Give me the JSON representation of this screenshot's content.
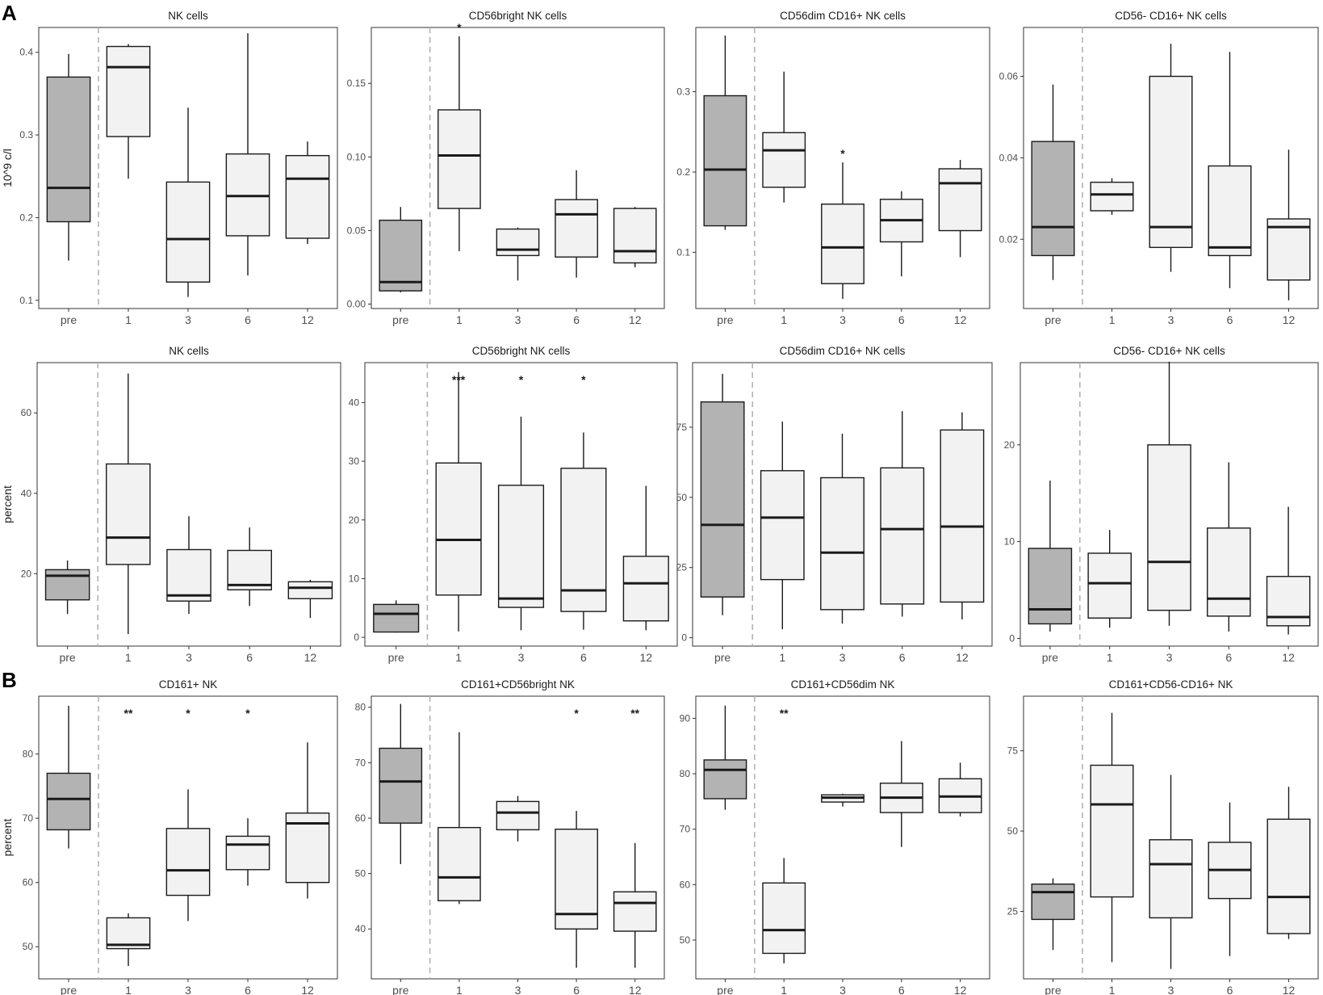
{
  "panel_labels": {
    "A": "A",
    "B": "B"
  },
  "chart_data": [
    {
      "type": "boxplot",
      "section": "A",
      "row": 0,
      "col": 0,
      "title": "NK cells",
      "ylabel": "10^9 c/l",
      "categories": [
        "pre",
        "1",
        "3",
        "6",
        "12"
      ],
      "ylim": [
        0.09,
        0.43
      ],
      "yticks": [
        0.1,
        0.2,
        0.3,
        0.4
      ],
      "ytick_labels": [
        "0.1",
        "0.2",
        "0.3",
        "0.4"
      ],
      "boxes": [
        {
          "min": 0.148,
          "q1": 0.195,
          "median": 0.236,
          "q3": 0.37,
          "max": 0.398
        },
        {
          "min": 0.247,
          "q1": 0.298,
          "median": 0.382,
          "q3": 0.407,
          "max": 0.41
        },
        {
          "min": 0.104,
          "q1": 0.122,
          "median": 0.174,
          "q3": 0.243,
          "max": 0.333
        },
        {
          "min": 0.13,
          "q1": 0.178,
          "median": 0.226,
          "q3": 0.277,
          "max": 0.423
        },
        {
          "min": 0.168,
          "q1": 0.175,
          "median": 0.247,
          "q3": 0.275,
          "max": 0.292
        }
      ],
      "significance": [
        "",
        "",
        "",
        "",
        ""
      ]
    },
    {
      "type": "boxplot",
      "section": "A",
      "row": 0,
      "col": 1,
      "title": "CD56bright NK cells",
      "ylabel": "",
      "categories": [
        "pre",
        "1",
        "3",
        "6",
        "12"
      ],
      "ylim": [
        -0.003,
        0.188
      ],
      "yticks": [
        0,
        0.05,
        0.1,
        0.15
      ],
      "ytick_labels": [
        "0.00",
        "0.05",
        "0.10",
        "0.15"
      ],
      "boxes": [
        {
          "min": 0.008,
          "q1": 0.009,
          "median": 0.015,
          "q3": 0.057,
          "max": 0.066
        },
        {
          "min": 0.036,
          "q1": 0.065,
          "median": 0.101,
          "q3": 0.132,
          "max": 0.182
        },
        {
          "min": 0.016,
          "q1": 0.033,
          "median": 0.037,
          "q3": 0.051,
          "max": 0.052
        },
        {
          "min": 0.018,
          "q1": 0.032,
          "median": 0.061,
          "q3": 0.071,
          "max": 0.091
        },
        {
          "min": 0.025,
          "q1": 0.028,
          "median": 0.036,
          "q3": 0.065,
          "max": 0.066
        }
      ],
      "significance": [
        "",
        "*",
        "",
        "",
        ""
      ]
    },
    {
      "type": "boxplot",
      "section": "A",
      "row": 0,
      "col": 2,
      "title": "CD56dim CD16+ NK cells",
      "ylabel": "",
      "categories": [
        "pre",
        "1",
        "3",
        "6",
        "12"
      ],
      "ylim": [
        0.03,
        0.38
      ],
      "yticks": [
        0.1,
        0.2,
        0.3
      ],
      "ytick_labels": [
        "0.1",
        "0.2",
        "0.3"
      ],
      "boxes": [
        {
          "min": 0.128,
          "q1": 0.133,
          "median": 0.203,
          "q3": 0.295,
          "max": 0.37
        },
        {
          "min": 0.162,
          "q1": 0.181,
          "median": 0.227,
          "q3": 0.249,
          "max": 0.325
        },
        {
          "min": 0.042,
          "q1": 0.061,
          "median": 0.106,
          "q3": 0.16,
          "max": 0.212
        },
        {
          "min": 0.07,
          "q1": 0.113,
          "median": 0.14,
          "q3": 0.166,
          "max": 0.176
        },
        {
          "min": 0.094,
          "q1": 0.127,
          "median": 0.186,
          "q3": 0.204,
          "max": 0.215
        }
      ],
      "significance": [
        "",
        "",
        "*",
        "",
        ""
      ]
    },
    {
      "type": "boxplot",
      "section": "A",
      "row": 0,
      "col": 3,
      "title": "CD56- CD16+ NK cells",
      "ylabel": "",
      "categories": [
        "pre",
        "1",
        "3",
        "6",
        "12"
      ],
      "ylim": [
        0.003,
        0.072
      ],
      "yticks": [
        0.02,
        0.04,
        0.06
      ],
      "ytick_labels": [
        "0.02",
        "0.04",
        "0.06"
      ],
      "boxes": [
        {
          "min": 0.01,
          "q1": 0.016,
          "median": 0.023,
          "q3": 0.044,
          "max": 0.058
        },
        {
          "min": 0.026,
          "q1": 0.027,
          "median": 0.031,
          "q3": 0.034,
          "max": 0.035
        },
        {
          "min": 0.012,
          "q1": 0.018,
          "median": 0.023,
          "q3": 0.06,
          "max": 0.068
        },
        {
          "min": 0.008,
          "q1": 0.016,
          "median": 0.018,
          "q3": 0.038,
          "max": 0.066
        },
        {
          "min": 0.005,
          "q1": 0.01,
          "median": 0.023,
          "q3": 0.025,
          "max": 0.042
        }
      ],
      "significance": [
        "",
        "",
        "",
        "",
        ""
      ]
    },
    {
      "type": "boxplot",
      "section": "A",
      "row": 1,
      "col": 0,
      "title": "NK cells",
      "ylabel": "percent",
      "categories": [
        "pre",
        "1",
        "3",
        "6",
        "12"
      ],
      "ylim": [
        2,
        72.5
      ],
      "yticks": [
        20,
        40,
        60
      ],
      "ytick_labels": [
        "20",
        "40",
        "60"
      ],
      "boxes": [
        {
          "min": 10,
          "q1": 13.5,
          "median": 19.5,
          "q3": 21,
          "max": 23.3
        },
        {
          "min": 5,
          "q1": 22.3,
          "median": 29,
          "q3": 47.3,
          "max": 69.8
        },
        {
          "min": 10,
          "q1": 13.2,
          "median": 14.6,
          "q3": 26,
          "max": 34.3
        },
        {
          "min": 12,
          "q1": 16,
          "median": 17.2,
          "q3": 25.8,
          "max": 31.5
        },
        {
          "min": 9,
          "q1": 13.8,
          "median": 16.5,
          "q3": 18,
          "max": 18.5
        }
      ],
      "significance": [
        "",
        "",
        "",
        "",
        ""
      ]
    },
    {
      "type": "boxplot",
      "section": "A",
      "row": 1,
      "col": 1,
      "title": "CD56bright NK cells",
      "ylabel": "",
      "categories": [
        "pre",
        "1",
        "3",
        "6",
        "12"
      ],
      "ylim": [
        -1.5,
        46.8
      ],
      "yticks": [
        0,
        10,
        20,
        30,
        40
      ],
      "ytick_labels": [
        "0",
        "10",
        "20",
        "30",
        "40"
      ],
      "boxes": [
        {
          "min": 0.8,
          "q1": 0.9,
          "median": 4,
          "q3": 5.6,
          "max": 6.3
        },
        {
          "min": 1,
          "q1": 7.2,
          "median": 16.6,
          "q3": 29.7,
          "max": 45.2
        },
        {
          "min": 1.2,
          "q1": 5.1,
          "median": 6.6,
          "q3": 25.9,
          "max": 37.6
        },
        {
          "min": 1.3,
          "q1": 4.4,
          "median": 8,
          "q3": 28.8,
          "max": 34.9
        },
        {
          "min": 1.2,
          "q1": 2.8,
          "median": 9.2,
          "q3": 13.8,
          "max": 25.8
        }
      ],
      "significance": [
        "",
        "***",
        "*",
        "*",
        ""
      ]
    },
    {
      "type": "boxplot",
      "section": "A",
      "row": 1,
      "col": 2,
      "title": "CD56dim CD16+ NK cells",
      "ylabel": "",
      "categories": [
        "pre",
        "1",
        "3",
        "6",
        "12"
      ],
      "ylim": [
        -3,
        98
      ],
      "yticks": [
        0,
        25,
        50,
        75
      ],
      "ytick_labels": [
        "0",
        "25",
        "50",
        "75"
      ],
      "boxes": [
        {
          "min": 8,
          "q1": 14.5,
          "median": 40.2,
          "q3": 84,
          "max": 94
        },
        {
          "min": 3,
          "q1": 20.7,
          "median": 42.8,
          "q3": 59.5,
          "max": 77
        },
        {
          "min": 5,
          "q1": 10,
          "median": 30.3,
          "q3": 57,
          "max": 72.7
        },
        {
          "min": 7.5,
          "q1": 12,
          "median": 38.7,
          "q3": 60.5,
          "max": 80.7
        },
        {
          "min": 6.5,
          "q1": 12.7,
          "median": 39.6,
          "q3": 74,
          "max": 80.3
        }
      ],
      "significance": [
        "",
        "",
        "",
        "",
        ""
      ]
    },
    {
      "type": "boxplot",
      "section": "A",
      "row": 1,
      "col": 3,
      "title": "CD56- CD16+ NK cells",
      "ylabel": "",
      "categories": [
        "pre",
        "1",
        "3",
        "6",
        "12"
      ],
      "ylim": [
        -0.8,
        28.5
      ],
      "yticks": [
        0,
        10,
        20
      ],
      "ytick_labels": [
        "0",
        "10",
        "20"
      ],
      "boxes": [
        {
          "min": 0.7,
          "q1": 1.5,
          "median": 3,
          "q3": 9.3,
          "max": 16.3
        },
        {
          "min": 1.1,
          "q1": 2.1,
          "median": 5.7,
          "q3": 8.8,
          "max": 11.2
        },
        {
          "min": 1.3,
          "q1": 2.9,
          "median": 7.9,
          "q3": 20,
          "max": 28.6
        },
        {
          "min": 0.7,
          "q1": 2.3,
          "median": 4.1,
          "q3": 11.4,
          "max": 18.2
        },
        {
          "min": 0.4,
          "q1": 1.3,
          "median": 2.2,
          "q3": 6.4,
          "max": 13.6
        }
      ],
      "significance": [
        "",
        "",
        "",
        "",
        ""
      ]
    },
    {
      "type": "boxplot",
      "section": "B",
      "row": 2,
      "col": 0,
      "title": "CD161+ NK",
      "ylabel": "percent",
      "categories": [
        "pre",
        "1",
        "3",
        "6",
        "12"
      ],
      "ylim": [
        45,
        89
      ],
      "yticks": [
        50,
        60,
        70,
        80
      ],
      "ytick_labels": [
        "50",
        "60",
        "70",
        "80"
      ],
      "boxes": [
        {
          "min": 65.3,
          "q1": 68.2,
          "median": 73,
          "q3": 77,
          "max": 87.5
        },
        {
          "min": 47,
          "q1": 49.7,
          "median": 50.3,
          "q3": 54.5,
          "max": 55.2
        },
        {
          "min": 54,
          "q1": 58,
          "median": 61.9,
          "q3": 68.4,
          "max": 74.5
        },
        {
          "min": 59.5,
          "q1": 62,
          "median": 65.9,
          "q3": 67.2,
          "max": 70
        },
        {
          "min": 57.5,
          "q1": 60,
          "median": 69.2,
          "q3": 70.8,
          "max": 81.8
        }
      ],
      "significance": [
        "",
        "**",
        "*",
        "*",
        ""
      ]
    },
    {
      "type": "boxplot",
      "section": "B",
      "row": 2,
      "col": 1,
      "title": "CD161+CD56bright NK",
      "ylabel": "",
      "categories": [
        "pre",
        "1",
        "3",
        "6",
        "12"
      ],
      "ylim": [
        31,
        82
      ],
      "yticks": [
        40,
        50,
        60,
        70,
        80
      ],
      "ytick_labels": [
        "40",
        "50",
        "60",
        "70",
        "80"
      ],
      "boxes": [
        {
          "min": 51.7,
          "q1": 59.1,
          "median": 66.6,
          "q3": 72.6,
          "max": 80.6
        },
        {
          "min": 44.5,
          "q1": 45.1,
          "median": 49.3,
          "q3": 58.3,
          "max": 75.5
        },
        {
          "min": 55.8,
          "q1": 57.9,
          "median": 61,
          "q3": 63,
          "max": 64
        },
        {
          "min": 33,
          "q1": 40,
          "median": 42.7,
          "q3": 58,
          "max": 61.3
        },
        {
          "min": 33,
          "q1": 39.6,
          "median": 44.7,
          "q3": 46.7,
          "max": 55.5
        }
      ],
      "significance": [
        "",
        "",
        "",
        "*",
        "**"
      ]
    },
    {
      "type": "boxplot",
      "section": "B",
      "row": 2,
      "col": 2,
      "title": "CD161+CD56dim NK",
      "ylabel": "",
      "categories": [
        "pre",
        "1",
        "3",
        "6",
        "12"
      ],
      "ylim": [
        43,
        94
      ],
      "yticks": [
        50,
        60,
        70,
        80,
        90
      ],
      "ytick_labels": [
        "50",
        "60",
        "70",
        "80",
        "90"
      ],
      "boxes": [
        {
          "min": 73.5,
          "q1": 75.5,
          "median": 80.7,
          "q3": 82.5,
          "max": 92.3
        },
        {
          "min": 45.8,
          "q1": 47.6,
          "median": 51.8,
          "q3": 60.3,
          "max": 64.8
        },
        {
          "min": 74.1,
          "q1": 74.9,
          "median": 75.7,
          "q3": 76.2,
          "max": 76.4
        },
        {
          "min": 66.8,
          "q1": 73,
          "median": 75.7,
          "q3": 78.3,
          "max": 85.9
        },
        {
          "min": 72.3,
          "q1": 73,
          "median": 75.9,
          "q3": 79.1,
          "max": 82
        }
      ],
      "significance": [
        "",
        "**",
        "",
        "",
        ""
      ]
    },
    {
      "type": "boxplot",
      "section": "B",
      "row": 2,
      "col": 3,
      "title": "CD161+CD56-CD16+ NK",
      "ylabel": "",
      "categories": [
        "pre",
        "1",
        "3",
        "6",
        "12"
      ],
      "ylim": [
        4,
        92
      ],
      "yticks": [
        25,
        50,
        75
      ],
      "ytick_labels": [
        "25",
        "50",
        "75"
      ],
      "boxes": [
        {
          "min": 13,
          "q1": 22.5,
          "median": 31,
          "q3": 33.5,
          "max": 35.3
        },
        {
          "min": 9.2,
          "q1": 29.5,
          "median": 58.3,
          "q3": 70.5,
          "max": 86.8
        },
        {
          "min": 7.1,
          "q1": 23,
          "median": 39.7,
          "q3": 47.3,
          "max": 67.5
        },
        {
          "min": 11.1,
          "q1": 29,
          "median": 37.9,
          "q3": 46.5,
          "max": 58.9
        },
        {
          "min": 16.4,
          "q1": 18.1,
          "median": 29.5,
          "q3": 53.7,
          "max": 63.8
        }
      ],
      "significance": [
        "",
        "",
        "",
        "",
        ""
      ]
    }
  ],
  "colors": {
    "pre_fill": "#b3b3b3",
    "post_fill": "#f2f2f2",
    "line": "#1a1a1a",
    "dashed": "#b3b3b3",
    "frame": "#333333"
  }
}
